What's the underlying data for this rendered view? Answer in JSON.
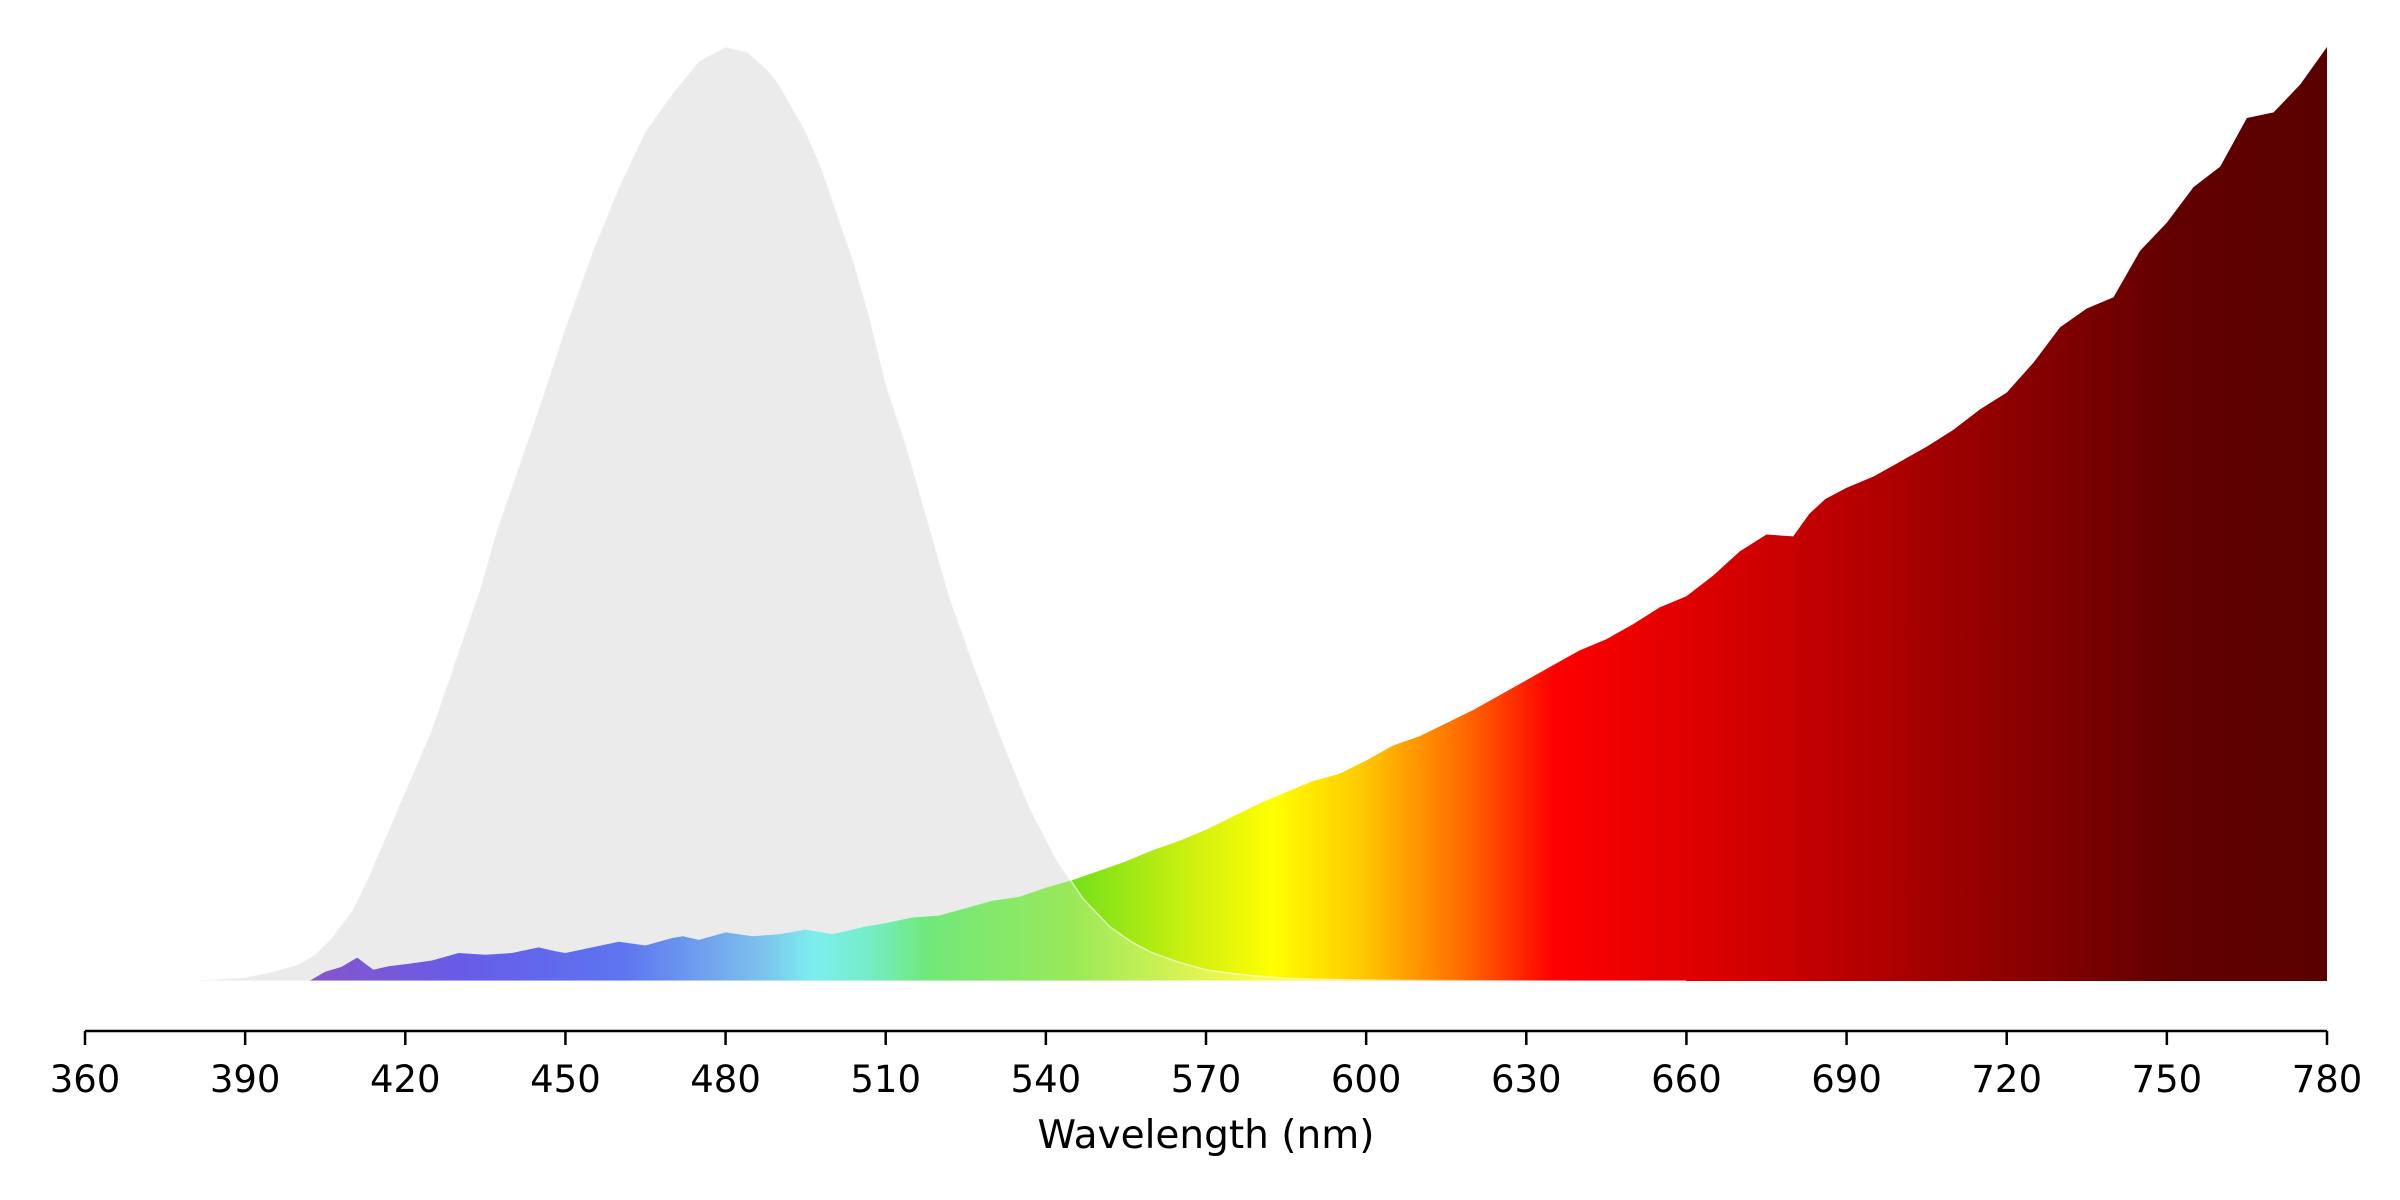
{
  "chart_data": {
    "type": "area",
    "title": "",
    "xlabel": "Wavelength (nm)",
    "ylabel": "",
    "xlim": [
      360,
      780
    ],
    "ylim": [
      0,
      1
    ],
    "x_ticks": [
      360,
      390,
      420,
      450,
      480,
      510,
      540,
      570,
      600,
      630,
      660,
      690,
      720,
      750,
      780
    ],
    "x_tick_labels": [
      "360",
      "390",
      "420",
      "450",
      "480",
      "510",
      "540",
      "570",
      "600",
      "630",
      "660",
      "690",
      "720",
      "750",
      "780"
    ],
    "grid": false,
    "legend": "none",
    "series": [
      {
        "color": "#e4e4e4",
        "style": "filled-area",
        "x": [
          380,
          390,
          395,
          400,
          403,
          406,
          410,
          413,
          416,
          419,
          422,
          425,
          428,
          431,
          434,
          437,
          440,
          443,
          446,
          450,
          455,
          460,
          465,
          470,
          475,
          480,
          484,
          488,
          490,
          492,
          495,
          498,
          501,
          504,
          507,
          510,
          514,
          518,
          522,
          527,
          532,
          537,
          542,
          547,
          552,
          556,
          560,
          565,
          570,
          575,
          580,
          585,
          590,
          595,
          600,
          610,
          620,
          640,
          660
        ],
        "values": [
          0.0,
          0.004,
          0.01,
          0.018,
          0.028,
          0.045,
          0.075,
          0.11,
          0.15,
          0.19,
          0.23,
          0.27,
          0.32,
          0.37,
          0.42,
          0.48,
          0.53,
          0.58,
          0.63,
          0.7,
          0.78,
          0.85,
          0.91,
          0.95,
          0.985,
          1.0,
          0.995,
          0.975,
          0.96,
          0.94,
          0.91,
          0.87,
          0.82,
          0.77,
          0.71,
          0.64,
          0.57,
          0.49,
          0.41,
          0.33,
          0.255,
          0.185,
          0.13,
          0.088,
          0.058,
          0.042,
          0.03,
          0.02,
          0.012,
          0.008,
          0.005,
          0.003,
          0.002,
          0.0015,
          0.001,
          0.0005,
          0.0002,
          0.0,
          0.0
        ]
      },
      {
        "color": "spectrum",
        "style": "filled-area",
        "x": [
          402,
          405,
          408,
          411,
          414,
          417,
          420,
          425,
          430,
          435,
          440,
          445,
          448,
          450,
          455,
          460,
          465,
          470,
          472,
          475,
          480,
          485,
          490,
          495,
          500,
          503,
          506,
          510,
          515,
          520,
          525,
          530,
          535,
          540,
          545,
          550,
          555,
          560,
          565,
          570,
          575,
          580,
          585,
          590,
          595,
          600,
          605,
          610,
          615,
          620,
          625,
          630,
          635,
          640,
          645,
          650,
          655,
          660,
          665,
          670,
          675,
          680,
          683,
          686,
          690,
          695,
          700,
          705,
          710,
          715,
          720,
          725,
          730,
          735,
          740,
          745,
          750,
          755,
          760,
          765,
          770,
          775,
          780
        ],
        "values": [
          0.0,
          0.01,
          0.015,
          0.025,
          0.012,
          0.016,
          0.018,
          0.022,
          0.03,
          0.028,
          0.03,
          0.036,
          0.032,
          0.03,
          0.036,
          0.042,
          0.038,
          0.046,
          0.048,
          0.044,
          0.052,
          0.048,
          0.05,
          0.055,
          0.05,
          0.054,
          0.058,
          0.062,
          0.068,
          0.07,
          0.078,
          0.086,
          0.09,
          0.1,
          0.108,
          0.118,
          0.128,
          0.14,
          0.15,
          0.162,
          0.176,
          0.19,
          0.202,
          0.214,
          0.222,
          0.236,
          0.252,
          0.262,
          0.276,
          0.29,
          0.306,
          0.322,
          0.338,
          0.354,
          0.366,
          0.382,
          0.4,
          0.412,
          0.434,
          0.46,
          0.478,
          0.476,
          0.5,
          0.516,
          0.528,
          0.54,
          0.556,
          0.572,
          0.59,
          0.612,
          0.63,
          0.662,
          0.7,
          0.72,
          0.732,
          0.782,
          0.812,
          0.85,
          0.872,
          0.924,
          0.93,
          0.96,
          1.0
        ]
      }
    ]
  }
}
